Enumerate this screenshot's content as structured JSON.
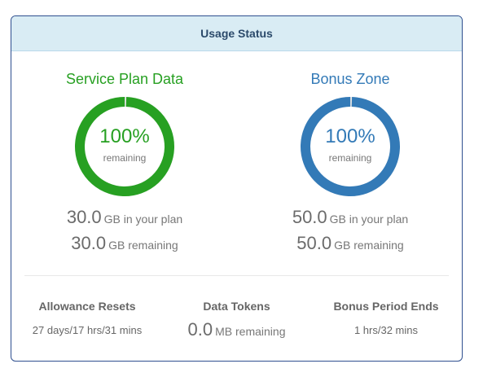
{
  "panel": {
    "title": "Usage Status"
  },
  "service_plan": {
    "heading": "Service Plan Data",
    "percent": "100%",
    "percent_value": 1.0,
    "remaining_label": "remaining",
    "plan_amount": "30.0",
    "plan_text": "GB in your plan",
    "remaining_amount": "30.0",
    "remaining_text": "GB remaining",
    "color": "#27a022"
  },
  "bonus_zone": {
    "heading": "Bonus Zone",
    "percent": "100%",
    "percent_value": 1.0,
    "remaining_label": "remaining",
    "plan_amount": "50.0",
    "plan_text": "GB in your plan",
    "remaining_amount": "50.0",
    "remaining_text": "GB remaining",
    "color": "#337ab7"
  },
  "footer": {
    "allowance": {
      "title": "Allowance Resets",
      "value": "27 days/17 hrs/31 mins"
    },
    "tokens": {
      "title": "Data Tokens",
      "amount": "0.0",
      "unit": "MB remaining"
    },
    "bonus_period": {
      "title": "Bonus Period Ends",
      "value": "1 hrs/32 mins"
    }
  }
}
